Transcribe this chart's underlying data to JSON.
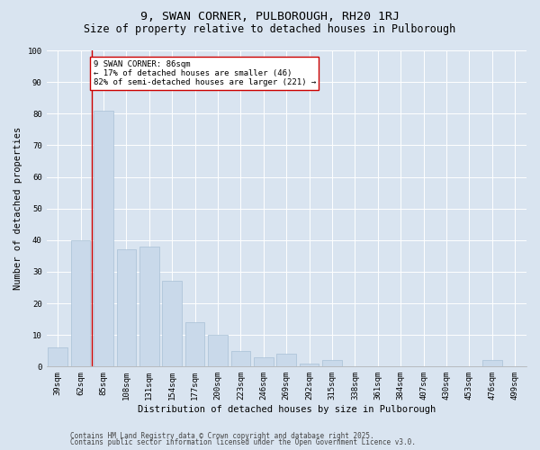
{
  "title1": "9, SWAN CORNER, PULBOROUGH, RH20 1RJ",
  "title2": "Size of property relative to detached houses in Pulborough",
  "xlabel": "Distribution of detached houses by size in Pulborough",
  "ylabel": "Number of detached properties",
  "categories": [
    "39sqm",
    "62sqm",
    "85sqm",
    "108sqm",
    "131sqm",
    "154sqm",
    "177sqm",
    "200sqm",
    "223sqm",
    "246sqm",
    "269sqm",
    "292sqm",
    "315sqm",
    "338sqm",
    "361sqm",
    "384sqm",
    "407sqm",
    "430sqm",
    "453sqm",
    "476sqm",
    "499sqm"
  ],
  "values": [
    6,
    40,
    81,
    37,
    38,
    27,
    14,
    10,
    5,
    3,
    4,
    1,
    2,
    0,
    0,
    0,
    0,
    0,
    0,
    2,
    0
  ],
  "bar_color": "#c9d9ea",
  "bar_edgecolor": "#a8c0d6",
  "vline_color": "#cc0000",
  "vline_index": 2,
  "annotation_text": "9 SWAN CORNER: 86sqm\n← 17% of detached houses are smaller (46)\n82% of semi-detached houses are larger (221) →",
  "annotation_box_edgecolor": "#cc0000",
  "annotation_box_facecolor": "#ffffff",
  "ylim": [
    0,
    100
  ],
  "yticks": [
    0,
    10,
    20,
    30,
    40,
    50,
    60,
    70,
    80,
    90,
    100
  ],
  "background_color": "#d9e4f0",
  "plot_bg_color": "#d9e4f0",
  "footer1": "Contains HM Land Registry data © Crown copyright and database right 2025.",
  "footer2": "Contains public sector information licensed under the Open Government Licence v3.0.",
  "title_fontsize": 9.5,
  "subtitle_fontsize": 8.5,
  "axis_label_fontsize": 7.5,
  "tick_fontsize": 6.5,
  "annotation_fontsize": 6.5,
  "footer_fontsize": 5.5
}
